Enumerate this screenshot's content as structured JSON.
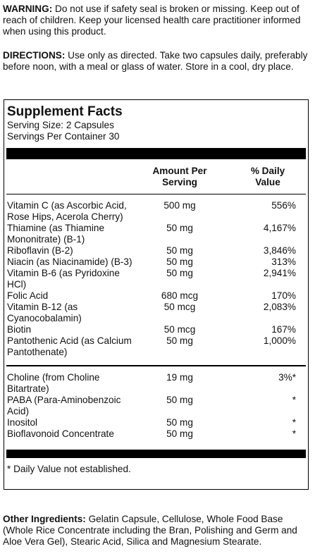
{
  "warning": {
    "label": "WARNING:",
    "text": "Do not use if safety seal is broken or missing. Keep out of reach of children. Keep your licensed health care practitioner informed when using this product."
  },
  "directions": {
    "label": "DIRECTIONS:",
    "text": "Use only as directed. Take two capsules daily, preferably before noon, with a meal or glass of water.  Store in a cool, dry place."
  },
  "facts": {
    "title": "Supplement Facts",
    "serving_size": "Serving Size: 2 Capsules",
    "servings_per_container": "Servings Per Container 30",
    "header": [
      "Amount Per Serving",
      "% Daily Value"
    ],
    "groups": [
      [
        [
          "Vitamin C (as Ascorbic Acid, Rose Hips, Acerola Cherry)",
          "500 mg",
          "556%"
        ],
        [
          "Thiamine (as Thiamine Mononitrate) (B-1)",
          "50 mg",
          "4,167%"
        ],
        [
          "Riboflavin (B-2)",
          "50 mg",
          "3,846%"
        ],
        [
          "Niacin (as Niacinamide) (B-3)",
          "50 mg",
          "313%"
        ],
        [
          "Vitamin B-6 (as Pyridoxine HCl)",
          "50 mg",
          "2,941%"
        ],
        [
          "Folic Acid",
          "680 mcg",
          "170%"
        ],
        [
          "Vitamin B-12 (as Cyanocobalamin)",
          "50 mcg",
          "2,083%"
        ],
        [
          "Biotin",
          "50 mcg",
          "167%"
        ],
        [
          "Pantothenic Acid (as Calcium Pantothenate)",
          "50 mg",
          "1,000%"
        ]
      ],
      [
        [
          "Choline (from Choline Bitartrate)",
          "19 mg",
          "3%*"
        ],
        [
          "PABA (Para-Aminobenzoic Acid)",
          "50 mg",
          "*"
        ],
        [
          "Inositol",
          "50 mg",
          "*"
        ],
        [
          "Bioflavonoid Concentrate",
          "50 mg",
          "*"
        ]
      ]
    ],
    "footnote": "* Daily Value not established."
  },
  "other_ingredients": {
    "label": "Other Ingredients:",
    "text": "Gelatin Capsule, Cellulose, Whole Food Base (Whole Rice Concentrate including the Bran, Polishing and Germ and Aloe Vera Gel), Stearic Acid, Silica and Magnesium Stearate."
  }
}
